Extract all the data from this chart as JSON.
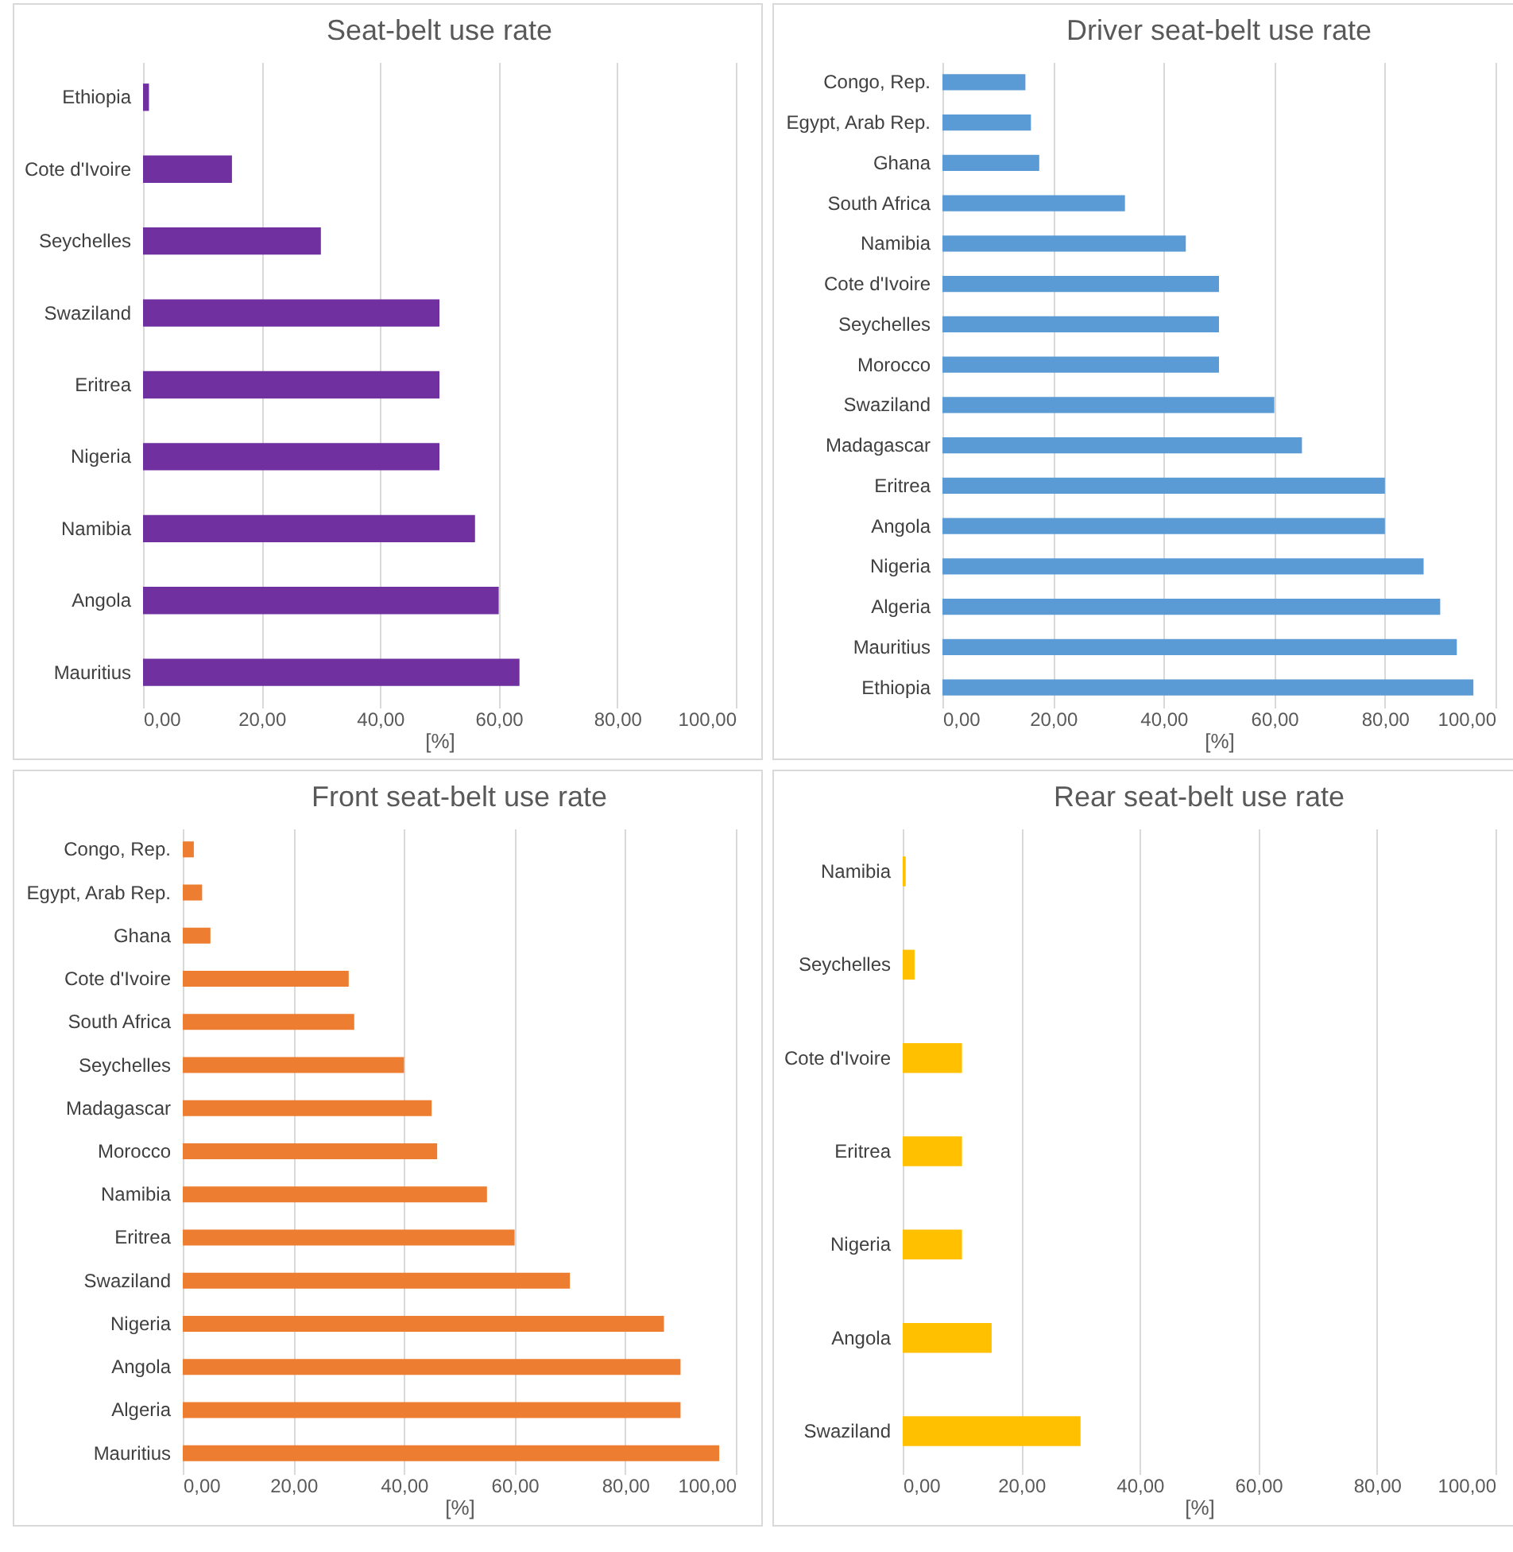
{
  "chart_data": [
    {
      "type": "bar",
      "orientation": "horizontal",
      "title": "Seat-belt use rate",
      "xlabel": "[%]",
      "color": "#7030a0",
      "grid": "x",
      "categories": [
        "Ethiopia",
        "Cote d'Ivoire",
        "Seychelles",
        "Swaziland",
        "Eritrea",
        "Nigeria",
        "Namibia",
        "Angola",
        "Mauritius"
      ],
      "values": [
        1,
        15,
        30,
        50,
        50,
        50,
        56,
        60,
        63.5
      ],
      "xlim": [
        0,
        100
      ],
      "xticks": [
        {
          "value": 0,
          "label": "0,00"
        },
        {
          "value": 20,
          "label": "20,00"
        },
        {
          "value": 40,
          "label": "40,00"
        },
        {
          "value": 60,
          "label": "60,00"
        },
        {
          "value": 80,
          "label": "80,00"
        },
        {
          "value": 100,
          "label": "100,00"
        }
      ]
    },
    {
      "type": "bar",
      "orientation": "horizontal",
      "title": "Driver seat-belt use rate",
      "xlabel": "[%]",
      "color": "#5b9bd5",
      "grid": "x",
      "categories": [
        "Congo, Rep.",
        "Egypt, Arab Rep.",
        "Ghana",
        "South Africa",
        "Namibia",
        "Cote d'Ivoire",
        "Seychelles",
        "Morocco",
        "Swaziland",
        "Madagascar",
        "Eritrea",
        "Angola",
        "Nigeria",
        "Algeria",
        "Mauritius",
        "Ethiopia"
      ],
      "values": [
        15,
        16,
        17.5,
        33,
        44,
        50,
        50,
        50,
        60,
        65,
        80,
        80,
        87,
        90,
        93,
        96
      ],
      "xlim": [
        0,
        100
      ],
      "xticks": [
        {
          "value": 0,
          "label": "0,00"
        },
        {
          "value": 20,
          "label": "20,00"
        },
        {
          "value": 40,
          "label": "40,00"
        },
        {
          "value": 60,
          "label": "60,00"
        },
        {
          "value": 80,
          "label": "80,00"
        },
        {
          "value": 100,
          "label": "100,00"
        }
      ]
    },
    {
      "type": "bar",
      "orientation": "horizontal",
      "title": "Front seat-belt use rate",
      "xlabel": "[%]",
      "color": "#ed7d31",
      "grid": "x",
      "categories": [
        "Congo, Rep.",
        "Egypt, Arab Rep.",
        "Ghana",
        "Cote d'Ivoire",
        "South Africa",
        "Seychelles",
        "Madagascar",
        "Morocco",
        "Namibia",
        "Eritrea",
        "Swaziland",
        "Nigeria",
        "Angola",
        "Algeria",
        "Mauritius"
      ],
      "values": [
        2,
        3.5,
        5,
        30,
        31,
        40,
        45,
        46,
        55,
        60,
        70,
        87,
        90,
        90,
        97
      ],
      "xlim": [
        0,
        100
      ],
      "xticks": [
        {
          "value": 0,
          "label": "0,00"
        },
        {
          "value": 20,
          "label": "20,00"
        },
        {
          "value": 40,
          "label": "40,00"
        },
        {
          "value": 60,
          "label": "60,00"
        },
        {
          "value": 80,
          "label": "80,00"
        },
        {
          "value": 100,
          "label": "100,00"
        }
      ]
    },
    {
      "type": "bar",
      "orientation": "horizontal",
      "title": "Rear seat-belt use rate",
      "xlabel": "[%]",
      "color": "#ffc000",
      "grid": "x",
      "categories": [
        "Namibia",
        "Seychelles",
        "Cote d'Ivoire",
        "Eritrea",
        "Nigeria",
        "Angola",
        "Swaziland"
      ],
      "values": [
        0.5,
        2,
        10,
        10,
        10,
        15,
        30
      ],
      "xlim": [
        0,
        100
      ],
      "xticks": [
        {
          "value": 0,
          "label": "0,00"
        },
        {
          "value": 20,
          "label": "20,00"
        },
        {
          "value": 40,
          "label": "40,00"
        },
        {
          "value": 60,
          "label": "60,00"
        },
        {
          "value": 80,
          "label": "80,00"
        },
        {
          "value": 100,
          "label": "100,00"
        }
      ]
    }
  ]
}
